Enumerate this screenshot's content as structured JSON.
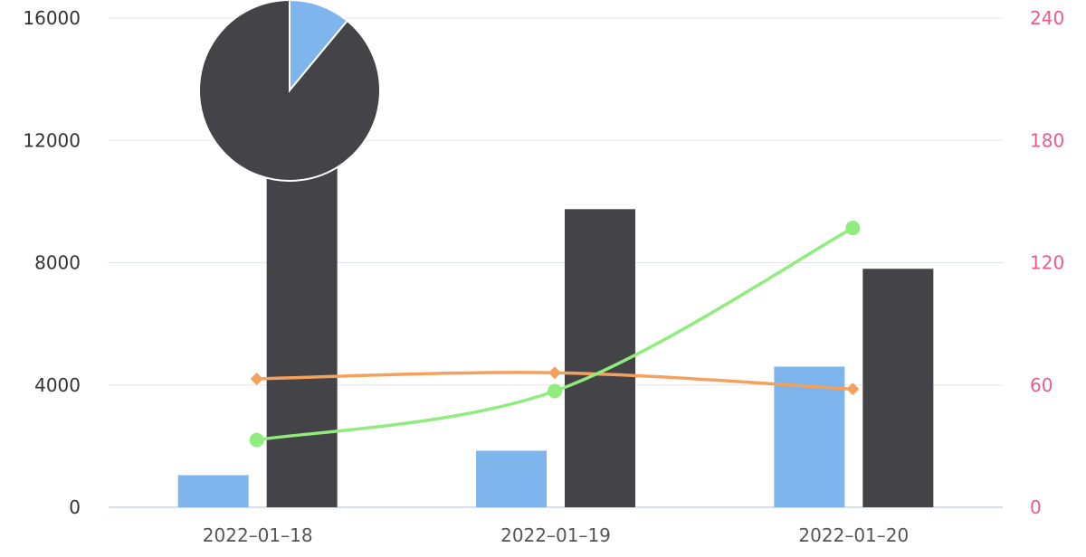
{
  "chart_data": {
    "type": "bar",
    "categories": [
      "2022–01–18",
      "2022–01–19",
      "2022–01–20"
    ],
    "y_left": {
      "min": 0,
      "max": 16000,
      "ticks": [
        "0",
        "4000",
        "8000",
        "12000",
        "16000"
      ]
    },
    "y_right": {
      "min": 0,
      "max": 240,
      "ticks": [
        "0",
        "60",
        "120",
        "180",
        "240"
      ]
    },
    "grid": true,
    "series": [
      {
        "type": "bar",
        "axis": "left",
        "color": "#7eb5ec",
        "values": [
          1050,
          1850,
          4600
        ]
      },
      {
        "type": "bar",
        "axis": "left",
        "color": "#434348",
        "values": [
          11500,
          9750,
          7800
        ]
      },
      {
        "type": "line",
        "axis": "right",
        "color": "#f4a15d",
        "marker": "diamond",
        "smooth": true,
        "values": [
          63,
          66,
          58
        ]
      },
      {
        "type": "line",
        "axis": "right",
        "color": "#90ed7d",
        "marker": "circle",
        "smooth": true,
        "values": [
          33,
          57,
          137
        ]
      }
    ],
    "pie": {
      "type": "pie",
      "slices": [
        {
          "value": 11,
          "color": "#7eb5ec"
        },
        {
          "value": 89,
          "color": "#434348"
        }
      ]
    }
  }
}
